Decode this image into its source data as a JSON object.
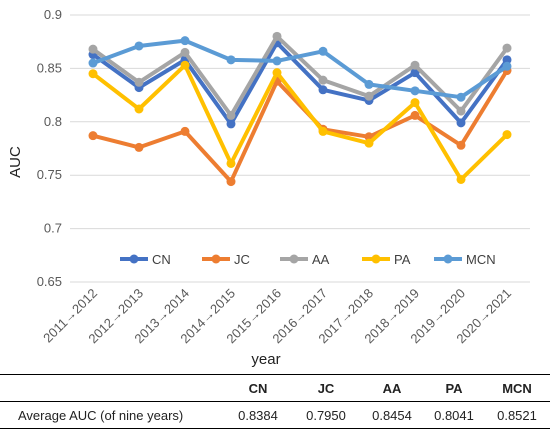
{
  "chart_data": {
    "type": "line",
    "xlabel": "year",
    "ylabel": "AUC",
    "ylim": [
      0.65,
      0.9
    ],
    "yticks": [
      "0.65",
      "0.7",
      "0.75",
      "0.8",
      "0.85",
      "0.9"
    ],
    "grid": "horizontal",
    "legend": "bottom-inside",
    "categories": [
      "2011→2012",
      "2012→2013",
      "2013→2014",
      "2014→2015",
      "2015→2016",
      "2016→2017",
      "2017→2018",
      "2018→2019",
      "2019→2020",
      "2020→2021"
    ],
    "series": [
      {
        "name": "CN",
        "color": "#4472C4",
        "values": [
          0.863,
          0.832,
          0.858,
          0.798,
          0.874,
          0.83,
          0.82,
          0.846,
          0.799,
          0.858
        ]
      },
      {
        "name": "JC",
        "color": "#ED7D31",
        "values": [
          0.787,
          0.776,
          0.791,
          0.744,
          0.838,
          0.793,
          0.786,
          0.806,
          0.778,
          0.848
        ]
      },
      {
        "name": "AA",
        "color": "#A5A5A5",
        "values": [
          0.868,
          0.837,
          0.865,
          0.806,
          0.88,
          0.839,
          0.824,
          0.853,
          0.81,
          0.869
        ]
      },
      {
        "name": "PA",
        "color": "#FFC000",
        "values": [
          0.845,
          0.812,
          0.853,
          0.761,
          0.846,
          0.791,
          0.78,
          0.818,
          0.746,
          0.788
        ]
      },
      {
        "name": "MCN",
        "color": "#5B9BD5",
        "values": [
          0.855,
          0.871,
          0.876,
          0.858,
          0.857,
          0.866,
          0.835,
          0.829,
          0.823,
          0.852
        ]
      }
    ]
  },
  "table": {
    "headers": [
      "",
      "CN",
      "JC",
      "AA",
      "PA",
      "MCN"
    ],
    "row_label": "Average AUC (of nine years)",
    "values": [
      "0.8384",
      "0.7950",
      "0.8454",
      "0.8041",
      "0.8521"
    ]
  }
}
